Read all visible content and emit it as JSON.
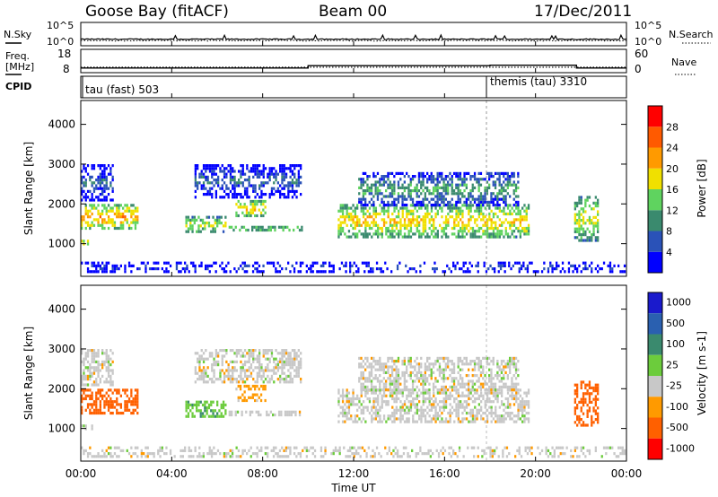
{
  "header": {
    "station": "Goose Bay (fitACF)",
    "beam": "Beam 00",
    "date": "17/Dec/2011"
  },
  "noise_panel": {
    "left_label": "N.Sky",
    "right_label": "N.Search",
    "left_ticks": [
      "10^5",
      "10^0"
    ],
    "right_ticks": [
      "10^5",
      "10^0"
    ]
  },
  "freq_panel": {
    "left_label_1": "Freq.",
    "left_label_2": "[MHz]",
    "right_label": "Nave",
    "left_ticks": [
      "18",
      "8"
    ],
    "right_ticks": [
      "60",
      "0"
    ]
  },
  "cpid_panel": {
    "label": "CPID",
    "mode_1": "tau (fast) 503",
    "mode_2": "themis (tau) 3310"
  },
  "power_panel": {
    "ylabel": "Slant Range [km]",
    "yticks": [
      "4000",
      "3000",
      "2000",
      "1000"
    ],
    "colorbar_label": "Power [dB]",
    "colorbar_ticks": [
      "28",
      "24",
      "20",
      "16",
      "12",
      "8",
      "4"
    ],
    "colors": [
      "#0000ff",
      "#2a52b8",
      "#3a8a6e",
      "#5fd35f",
      "#f0e000",
      "#ff9a00",
      "#ff5a00",
      "#ff0000"
    ]
  },
  "velocity_panel": {
    "ylabel": "Slant Range [km]",
    "yticks": [
      "4000",
      "3000",
      "2000",
      "1000"
    ],
    "colorbar_label": "Velocity [m s-1]",
    "colorbar_ticks": [
      "1000",
      "500",
      "100",
      "25",
      "-25",
      "-100",
      "-500",
      "-1000"
    ],
    "colors": [
      "#1a1acc",
      "#2a60b0",
      "#3a8a6e",
      "#6ccc3c",
      "#c8c8c8",
      "#ff9a00",
      "#ff6000",
      "#ff0000"
    ]
  },
  "xaxis": {
    "label": "Time UT",
    "ticks": [
      "00:00",
      "04:00",
      "08:00",
      "12:00",
      "16:00",
      "20:00",
      "00:00"
    ]
  },
  "chart_data": {
    "type": "heatmap",
    "title": "Goose Bay (fitACF) Beam 00 17/Dec/2011",
    "xlabel": "Time UT",
    "ylabel": "Slant Range [km]",
    "xlim_hours": [
      0,
      24
    ],
    "ylim_km": [
      180,
      4600
    ],
    "noise_log_range": [
      0,
      5
    ],
    "freq_mhz_range": [
      8,
      18
    ],
    "nave_range": [
      0,
      60
    ],
    "freq_profile_mhz": [
      {
        "from": 0,
        "to": 10,
        "value": 10
      },
      {
        "from": 10,
        "to": 18,
        "value": 11
      },
      {
        "from": 18,
        "to": 21.8,
        "value": 11.2
      },
      {
        "from": 21.8,
        "to": 24,
        "value": 10
      }
    ],
    "cpid_segments": [
      {
        "from": 0,
        "to": 18,
        "name": "tau (fast) 503"
      },
      {
        "from": 18,
        "to": 24,
        "name": "themis (tau) 3310"
      }
    ],
    "scatter_regions": [
      {
        "t0": 0.0,
        "t1": 2.6,
        "r0": 1300,
        "r1": 2000,
        "power_db": 22,
        "velocity": -150
      },
      {
        "t0": 0.0,
        "t1": 0.6,
        "r0": 900,
        "r1": 1100,
        "power_db": 20,
        "velocity": 0
      },
      {
        "t0": 0.0,
        "t1": 1.5,
        "r0": 2000,
        "r1": 3000,
        "power_db": 8,
        "velocity": 0
      },
      {
        "t0": 4.6,
        "t1": 6.5,
        "r0": 1200,
        "r1": 1700,
        "power_db": 18,
        "velocity": 80
      },
      {
        "t0": 6.8,
        "t1": 8.2,
        "r0": 1600,
        "r1": 2100,
        "power_db": 20,
        "velocity": -50
      },
      {
        "t0": 6.5,
        "t1": 9.8,
        "r0": 1300,
        "r1": 1450,
        "power_db": 16,
        "velocity": 0
      },
      {
        "t0": 5.0,
        "t1": 9.8,
        "r0": 2100,
        "r1": 3000,
        "power_db": 8,
        "velocity": 0
      },
      {
        "t0": 11.3,
        "t1": 19.8,
        "r0": 1100,
        "r1": 2000,
        "power_db": 20,
        "velocity": 0
      },
      {
        "t0": 12.2,
        "t1": 19.3,
        "r0": 1900,
        "r1": 2800,
        "power_db": 12,
        "velocity": 0
      },
      {
        "t0": 21.7,
        "t1": 22.8,
        "r0": 1000,
        "r1": 2200,
        "power_db": 18,
        "velocity": -150
      },
      {
        "t0": 0.0,
        "t1": 24.0,
        "r0": 200,
        "r1": 550,
        "power_db": 6,
        "velocity": 0
      }
    ]
  }
}
